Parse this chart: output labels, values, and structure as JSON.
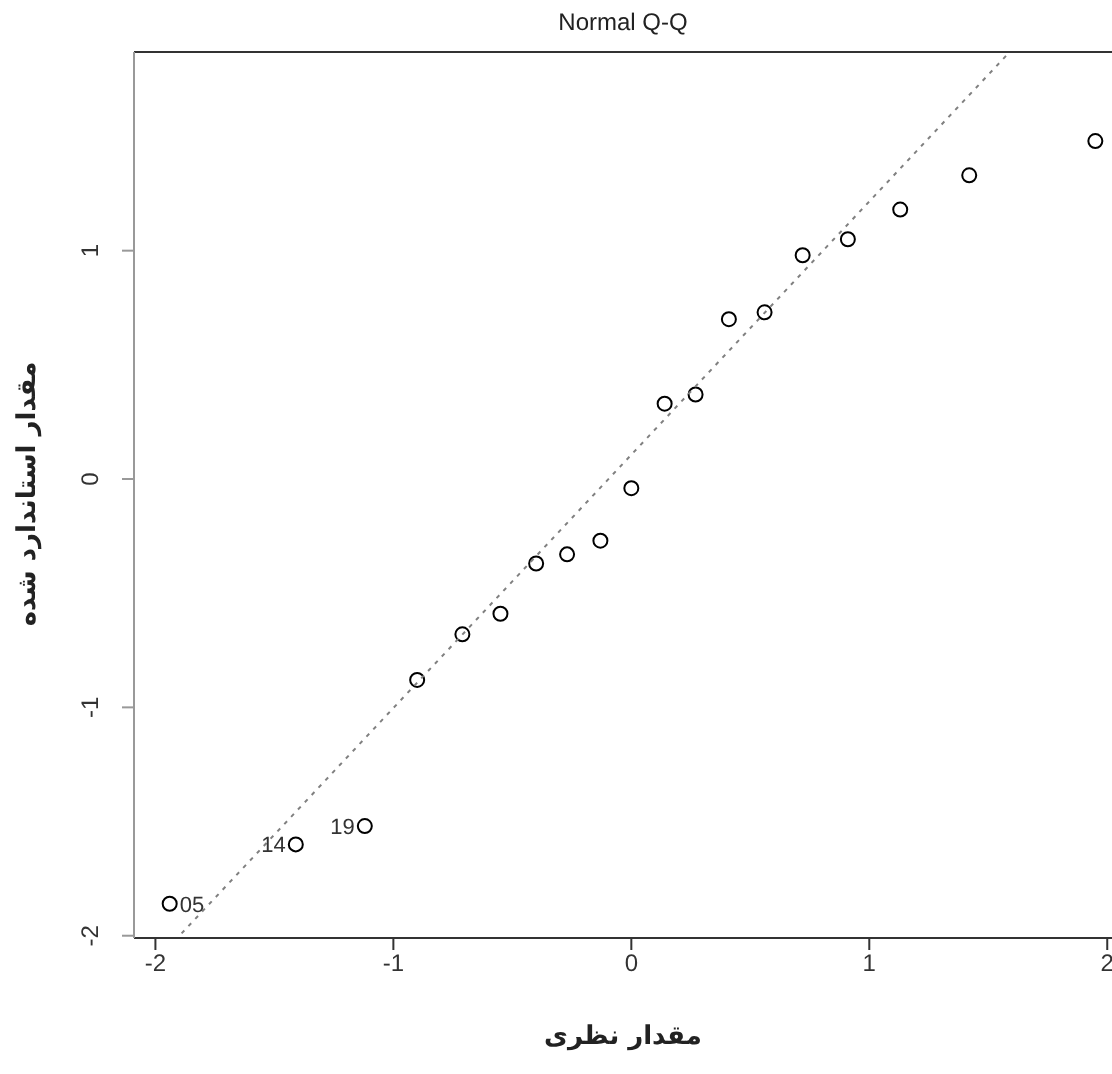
{
  "chart_data": {
    "type": "scatter",
    "title": "Normal Q-Q",
    "xlabel": "مقدار نظری",
    "ylabel": "مقدار استاندارد شده",
    "xlim": [
      -2.09,
      2.02
    ],
    "ylim": [
      -2.01,
      1.87
    ],
    "xticks": [
      -2,
      -1,
      0,
      1,
      2
    ],
    "yticks": [
      -2,
      -1,
      0,
      1
    ],
    "grid": false,
    "marker": "circle",
    "series": [
      {
        "color": "#000000",
        "x": [
          -1.94,
          -1.41,
          -1.12,
          -0.9,
          -0.71,
          -0.55,
          -0.4,
          -0.27,
          -0.13,
          0.0,
          0.14,
          0.27,
          0.41,
          0.56,
          0.72,
          0.91,
          1.13,
          1.42,
          1.95
        ],
        "values": [
          -1.86,
          -1.6,
          -1.52,
          -0.88,
          -0.68,
          -0.59,
          -0.37,
          -0.33,
          -0.27,
          -0.04,
          0.33,
          0.37,
          0.7,
          0.73,
          0.98,
          1.05,
          1.18,
          1.33,
          1.48
        ]
      },
      {
        "type": "line",
        "color": "#808080",
        "line_style": "dotted",
        "marker": "none",
        "x": [
          -1.89,
          1.59
        ],
        "values": [
          -1.99,
          1.87
        ]
      }
    ],
    "annotations": [
      {
        "text": "05",
        "x": -1.94,
        "y": -1.86
      },
      {
        "text": "14",
        "x": -1.41,
        "y": -1.6
      },
      {
        "text": "19",
        "x": -1.12,
        "y": -1.52
      }
    ]
  }
}
